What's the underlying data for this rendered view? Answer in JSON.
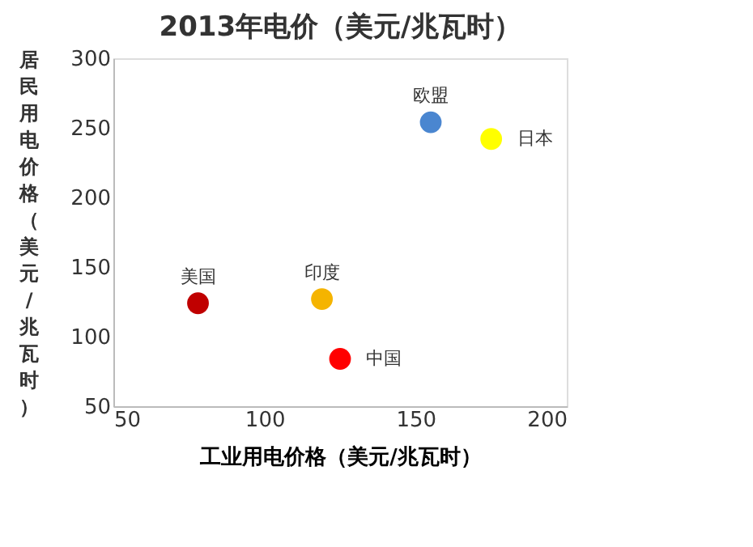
{
  "chart_data": {
    "type": "scatter",
    "title": "2013年电价（美元/兆瓦时）",
    "xlabel": "工业用电价格（美元/兆瓦时）",
    "ylabel": "居民用电价格（美元/兆瓦时）",
    "xlim": [
      50,
      200
    ],
    "xticks": [
      50,
      100,
      150,
      200
    ],
    "ylim": [
      50,
      300
    ],
    "yticks": [
      50,
      100,
      150,
      200,
      250,
      300
    ],
    "grid": false,
    "marker": "circle",
    "series": [
      {
        "name": "美国",
        "color": "#c00000",
        "x": [
          78
        ],
        "values": [
          124
        ]
      },
      {
        "name": "印度",
        "color": "#f5b400",
        "x": [
          119
        ],
        "values": [
          127
        ]
      },
      {
        "name": "中国",
        "color": "#ff0000",
        "x": [
          125
        ],
        "values": [
          84
        ]
      },
      {
        "name": "欧盟",
        "color": "#4a86d0",
        "x": [
          155
        ],
        "values": [
          254
        ]
      },
      {
        "name": "日本",
        "color": "#ffff00",
        "x": [
          175
        ],
        "values": [
          242
        ]
      }
    ]
  }
}
